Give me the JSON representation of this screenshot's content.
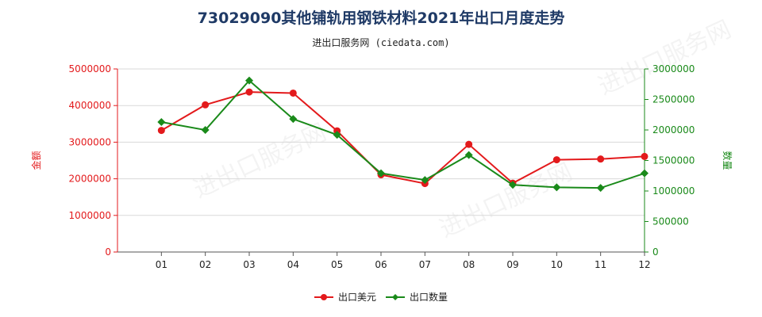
{
  "title": "73029090其他铺轨用钢铁材料2021年出口月度走势",
  "subtitle": "进出口服务网 (ciedata.com)",
  "watermark": "进出口服务网",
  "colors": {
    "amount": "#e31a1c",
    "quantity": "#1a8a1a",
    "axis_left": "#e31a1c",
    "axis_right": "#1a8a1a",
    "grid": "#d9d9d9"
  },
  "chart_data": {
    "type": "line",
    "categories": [
      "01",
      "02",
      "03",
      "04",
      "05",
      "06",
      "07",
      "08",
      "09",
      "10",
      "11",
      "12"
    ],
    "series": [
      {
        "name": "出口美元",
        "axis": "left",
        "values": [
          3320000,
          4020000,
          4370000,
          4340000,
          3310000,
          2110000,
          1870000,
          2940000,
          1880000,
          2520000,
          2540000,
          2610000
        ]
      },
      {
        "name": "出口数量",
        "axis": "right",
        "values": [
          2130000,
          2000000,
          2810000,
          2180000,
          1920000,
          1290000,
          1180000,
          1590000,
          1100000,
          1060000,
          1050000,
          1290000
        ]
      }
    ],
    "y_left": {
      "label": "金额",
      "lim": [
        0,
        5000000
      ],
      "ticks": [
        "0",
        "1000000",
        "2000000",
        "3000000",
        "4000000",
        "5000000"
      ]
    },
    "y_right": {
      "label": "数量",
      "lim": [
        0,
        3000000
      ],
      "ticks": [
        "0",
        "500000",
        "1000000",
        "1500000",
        "2000000",
        "2500000",
        "3000000"
      ]
    },
    "grid": true,
    "legend_position": "bottom-center"
  }
}
